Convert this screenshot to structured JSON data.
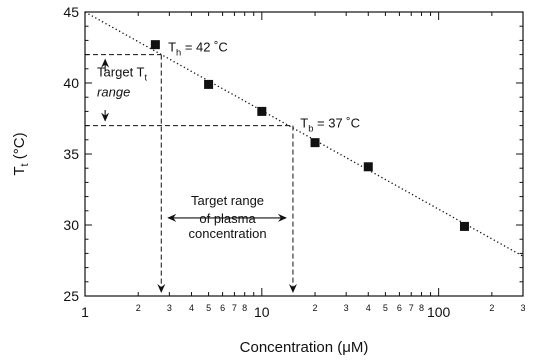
{
  "chart_data": {
    "type": "scatter",
    "x_scale": "log",
    "xlim": [
      1,
      300
    ],
    "ylim": [
      25,
      45
    ],
    "xlabel": "Concentration (μM)",
    "ylabel": {
      "main": "T",
      "sub": "t",
      "unit": " (°C)"
    },
    "x_major_ticks": [
      {
        "value": 1,
        "label": "1"
      },
      {
        "value": 10,
        "label": "10"
      },
      {
        "value": 100,
        "label": "100"
      }
    ],
    "x_minor_ticks": [
      {
        "value": 2,
        "label": "2"
      },
      {
        "value": 3,
        "label": "3"
      },
      {
        "value": 4,
        "label": "4"
      },
      {
        "value": 5,
        "label": "5"
      },
      {
        "value": 6,
        "label": "6"
      },
      {
        "value": 7,
        "label": "7"
      },
      {
        "value": 8,
        "label": "8"
      },
      {
        "value": 9,
        "label": ""
      },
      {
        "value": 20,
        "label": "2"
      },
      {
        "value": 30,
        "label": "3"
      },
      {
        "value": 40,
        "label": "4"
      },
      {
        "value": 50,
        "label": "5"
      },
      {
        "value": 60,
        "label": "6"
      },
      {
        "value": 70,
        "label": "7"
      },
      {
        "value": 80,
        "label": "8"
      },
      {
        "value": 90,
        "label": ""
      },
      {
        "value": 200,
        "label": "2"
      },
      {
        "value": 300,
        "label": "3"
      }
    ],
    "y_major_ticks": [
      25,
      30,
      35,
      40,
      45
    ],
    "points": [
      {
        "x": 2.5,
        "y": 42.7
      },
      {
        "x": 5,
        "y": 39.9
      },
      {
        "x": 10,
        "y": 38.0
      },
      {
        "x": 20,
        "y": 35.8
      },
      {
        "x": 40,
        "y": 34.1
      },
      {
        "x": 140,
        "y": 29.9
      }
    ],
    "fit_line": {
      "x": [
        1,
        300
      ],
      "y": [
        45.0,
        27.8
      ],
      "style": "dotted"
    },
    "reference_lines": {
      "th": {
        "y": 42,
        "x_intersect": 2.7,
        "label_main": "T",
        "label_sub": "h",
        "label_rest": " = 42 ˚C"
      },
      "tb": {
        "y": 37,
        "x_intersect": 15,
        "label_main": "T",
        "label_sub": "b",
        "label_rest": " = 37 ˚C"
      }
    },
    "annotations": {
      "target_t_range": {
        "line1_main": "Target T",
        "line1_sub": "t",
        "line2": "range"
      },
      "target_plasma_range": {
        "lines": [
          "Target range",
          "of plasma",
          "concentration"
        ]
      }
    }
  }
}
